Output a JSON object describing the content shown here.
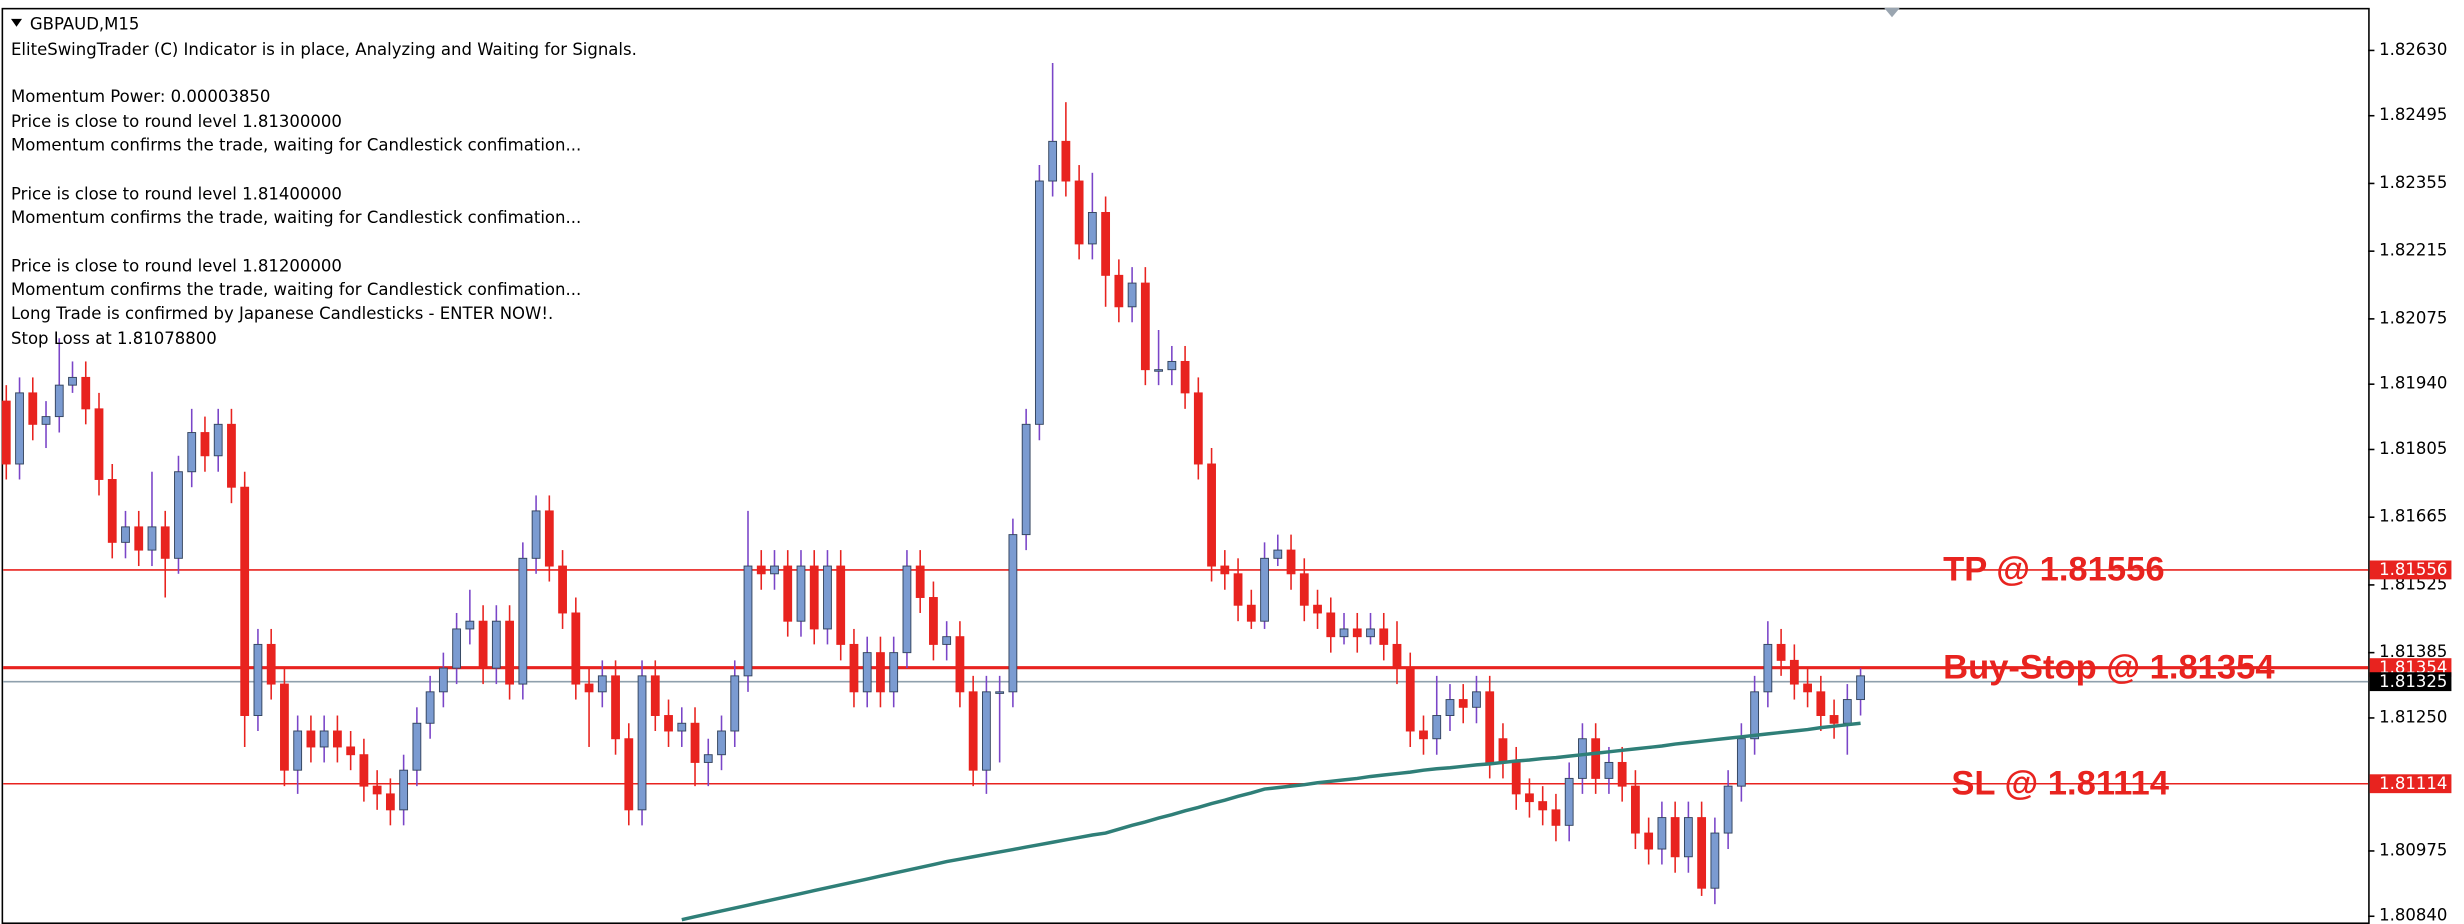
{
  "chart_data": {
    "type": "candlestick",
    "title": "GBPAUD,M15",
    "info_lines": [
      "EliteSwingTrader (C) Indicator is in place, Analyzing and Waiting for Signals.",
      "Momentum Power: 0.00003850",
      "Price is close to round level 1.81300000",
      "Momentum confirms the trade, waiting for Candlestick confimation...",
      "Price is close to round level 1.81400000",
      "Momentum confirms the trade, waiting for Candlestick confimation...",
      "Price is close to round level 1.81200000",
      "Momentum confirms the trade, waiting for Candlestick confimation...",
      "Long Trade is confirmed by Japanese Candlesticks - ENTER NOW!.",
      "Stop Loss at 1.81078800"
    ],
    "open": [
      1.81905,
      1.81775,
      1.81922,
      1.81857,
      1.81873,
      1.81938,
      1.81954,
      1.81889,
      1.81743,
      1.81613,
      1.81645,
      1.81597,
      1.81645,
      1.8158,
      1.81759,
      1.8184,
      1.81792,
      1.81857,
      1.81727,
      1.81255,
      1.81402,
      1.8132,
      1.81142,
      1.81223,
      1.8119,
      1.81223,
      1.8119,
      1.81174,
      1.81109,
      1.81093,
      1.8106,
      1.81142,
      1.81239,
      1.81304,
      1.81353,
      1.81434,
      1.8145,
      1.81353,
      1.8145,
      1.8132,
      1.8158,
      1.81678,
      1.81564,
      1.81467,
      1.8132,
      1.81304,
      1.81337,
      1.81207,
      1.8106,
      1.81337,
      1.81255,
      1.81223,
      1.81239,
      1.81158,
      1.81174,
      1.81223,
      1.81337,
      1.81564,
      1.81548,
      1.81564,
      1.8145,
      1.81564,
      1.81434,
      1.81564,
      1.81402,
      1.81304,
      1.81385,
      1.81304,
      1.81385,
      1.81564,
      1.81499,
      1.81402,
      1.81418,
      1.81304,
      1.81142,
      1.81304,
      1.81304,
      1.81629,
      1.81857,
      1.8236,
      1.82442,
      1.8236,
      1.8223,
      1.82295,
      1.82165,
      1.821,
      1.82149,
      1.8197,
      1.8197,
      1.81987,
      1.81922,
      1.81775,
      1.81564,
      1.81548,
      1.81483,
      1.8145,
      1.8158,
      1.81597,
      1.81548,
      1.81483,
      1.81467,
      1.81418,
      1.81434,
      1.81418,
      1.81434,
      1.81402,
      1.81353,
      1.81223,
      1.81207,
      1.81255,
      1.81288,
      1.81272,
      1.81304,
      1.81207,
      1.81158,
      1.81093,
      1.81077,
      1.8106,
      1.81028,
      1.81125,
      1.81207,
      1.81125,
      1.81158,
      1.81109,
      1.81012,
      1.80979,
      1.81044,
      1.80963,
      1.81044,
      1.80898,
      1.81012,
      1.81109,
      1.81207,
      1.81304,
      1.81402,
      1.81369,
      1.8132,
      1.81304,
      1.81255,
      1.81239,
      1.81288
    ],
    "high": [
      1.81938,
      1.81954,
      1.81954,
      1.81905,
      1.82035,
      1.81987,
      1.81987,
      1.81922,
      1.81775,
      1.81678,
      1.81678,
      1.81759,
      1.81678,
      1.81792,
      1.81889,
      1.81873,
      1.81889,
      1.81889,
      1.81759,
      1.81434,
      1.81434,
      1.81353,
      1.81255,
      1.81255,
      1.81255,
      1.81255,
      1.81223,
      1.81207,
      1.81142,
      1.81125,
      1.81174,
      1.81272,
      1.81337,
      1.81385,
      1.81467,
      1.81515,
      1.81483,
      1.81483,
      1.81483,
      1.81613,
      1.8171,
      1.8171,
      1.81597,
      1.81499,
      1.81353,
      1.81369,
      1.81369,
      1.81239,
      1.81369,
      1.81369,
      1.81288,
      1.81272,
      1.81272,
      1.81207,
      1.81255,
      1.81369,
      1.81678,
      1.81597,
      1.81597,
      1.81597,
      1.81597,
      1.81597,
      1.81597,
      1.81597,
      1.81434,
      1.81418,
      1.81418,
      1.81418,
      1.81597,
      1.81597,
      1.81532,
      1.8145,
      1.8145,
      1.81337,
      1.81337,
      1.81337,
      1.81662,
      1.81889,
      1.82393,
      1.82604,
      1.82523,
      1.82393,
      1.82377,
      1.82328,
      1.82198,
      1.82182,
      1.82182,
      1.82052,
      1.82019,
      1.82019,
      1.81954,
      1.81808,
      1.81597,
      1.8158,
      1.81515,
      1.81613,
      1.81629,
      1.81629,
      1.8158,
      1.81515,
      1.81499,
      1.81467,
      1.81467,
      1.81467,
      1.81467,
      1.8145,
      1.81385,
      1.81255,
      1.81337,
      1.8132,
      1.8132,
      1.81337,
      1.81337,
      1.81239,
      1.8119,
      1.81125,
      1.81109,
      1.81093,
      1.81158,
      1.81239,
      1.81239,
      1.8119,
      1.8119,
      1.81142,
      1.81044,
      1.81077,
      1.81077,
      1.81077,
      1.81077,
      1.81044,
      1.81142,
      1.81239,
      1.81337,
      1.8145,
      1.81434,
      1.81402,
      1.81353,
      1.81337,
      1.81288,
      1.8132,
      1.81353
    ],
    "low": [
      1.81743,
      1.81743,
      1.81824,
      1.81808,
      1.8184,
      1.81922,
      1.81857,
      1.8171,
      1.8158,
      1.8158,
      1.81564,
      1.81564,
      1.81499,
      1.81548,
      1.81727,
      1.81759,
      1.81759,
      1.81694,
      1.8119,
      1.81223,
      1.81288,
      1.81109,
      1.81093,
      1.81158,
      1.81158,
      1.81158,
      1.81142,
      1.81077,
      1.8106,
      1.81028,
      1.81028,
      1.81109,
      1.81207,
      1.81272,
      1.8132,
      1.81402,
      1.8132,
      1.8132,
      1.81288,
      1.81288,
      1.81548,
      1.81532,
      1.81434,
      1.81288,
      1.8119,
      1.81272,
      1.81174,
      1.81028,
      1.81028,
      1.81223,
      1.8119,
      1.8119,
      1.81109,
      1.81109,
      1.81142,
      1.8119,
      1.81304,
      1.81515,
      1.81515,
      1.81418,
      1.81418,
      1.81402,
      1.81402,
      1.81369,
      1.81272,
      1.81272,
      1.81272,
      1.81272,
      1.81353,
      1.81467,
      1.81369,
      1.81369,
      1.81272,
      1.81109,
      1.81093,
      1.81158,
      1.81272,
      1.81597,
      1.81824,
      1.82328,
      1.82328,
      1.82198,
      1.82198,
      1.821,
      1.82068,
      1.82068,
      1.81938,
      1.81938,
      1.81938,
      1.81889,
      1.81743,
      1.81532,
      1.81515,
      1.8145,
      1.81434,
      1.81434,
      1.81564,
      1.81515,
      1.8145,
      1.81434,
      1.81385,
      1.81402,
      1.81385,
      1.81402,
      1.81369,
      1.8132,
      1.8119,
      1.81174,
      1.81174,
      1.81223,
      1.81239,
      1.81239,
      1.81125,
      1.81125,
      1.8106,
      1.81044,
      1.81028,
      1.80995,
      1.80995,
      1.81093,
      1.81093,
      1.81093,
      1.81077,
      1.80979,
      1.80947,
      1.80947,
      1.8093,
      1.8093,
      1.80882,
      1.80865,
      1.80979,
      1.81077,
      1.81174,
      1.81272,
      1.81337,
      1.81288,
      1.81272,
      1.81223,
      1.81207,
      1.81174,
      1.81255
    ],
    "close": [
      1.81775,
      1.81922,
      1.81857,
      1.81873,
      1.81938,
      1.81954,
      1.81889,
      1.81743,
      1.81613,
      1.81645,
      1.81597,
      1.81645,
      1.8158,
      1.81759,
      1.8184,
      1.81792,
      1.81857,
      1.81727,
      1.81255,
      1.81402,
      1.8132,
      1.81142,
      1.81223,
      1.8119,
      1.81223,
      1.8119,
      1.81174,
      1.81109,
      1.81093,
      1.8106,
      1.81142,
      1.81239,
      1.81304,
      1.81353,
      1.81434,
      1.8145,
      1.81353,
      1.8145,
      1.8132,
      1.8158,
      1.81678,
      1.81564,
      1.81467,
      1.8132,
      1.81304,
      1.81337,
      1.81207,
      1.8106,
      1.81337,
      1.81255,
      1.81223,
      1.81239,
      1.81158,
      1.81174,
      1.81223,
      1.81337,
      1.81564,
      1.81548,
      1.81564,
      1.8145,
      1.81564,
      1.81434,
      1.81564,
      1.81402,
      1.81304,
      1.81385,
      1.81304,
      1.81385,
      1.81564,
      1.81499,
      1.81402,
      1.81418,
      1.81304,
      1.81142,
      1.81304,
      1.81304,
      1.81629,
      1.81857,
      1.8236,
      1.82442,
      1.8236,
      1.8223,
      1.82295,
      1.82165,
      1.821,
      1.82149,
      1.8197,
      1.8197,
      1.81987,
      1.81922,
      1.81775,
      1.81564,
      1.81548,
      1.81483,
      1.8145,
      1.8158,
      1.81597,
      1.81548,
      1.81483,
      1.81467,
      1.81418,
      1.81434,
      1.81418,
      1.81434,
      1.81402,
      1.81353,
      1.81223,
      1.81207,
      1.81255,
      1.81288,
      1.81272,
      1.81304,
      1.81158,
      1.81158,
      1.81093,
      1.81077,
      1.8106,
      1.81028,
      1.81125,
      1.81207,
      1.81125,
      1.81158,
      1.81109,
      1.81012,
      1.80979,
      1.81044,
      1.80963,
      1.81044,
      1.80898,
      1.81012,
      1.81109,
      1.81207,
      1.81304,
      1.81402,
      1.81369,
      1.8132,
      1.81304,
      1.81255,
      1.81239,
      1.81288,
      1.81337
    ],
    "up_color": "#7b9bd1",
    "up_wick_color": "#7a45c8",
    "down_color": "#e8231f",
    "overlay": {
      "color": "#2f7f78",
      "values": [
        null,
        null,
        null,
        null,
        null,
        null,
        null,
        null,
        null,
        null,
        null,
        null,
        null,
        null,
        null,
        null,
        null,
        null,
        null,
        null,
        null,
        null,
        null,
        null,
        null,
        null,
        null,
        null,
        null,
        null,
        null,
        null,
        null,
        null,
        null,
        null,
        null,
        null,
        null,
        null,
        null,
        null,
        null,
        null,
        null,
        null,
        null,
        null,
        null,
        null,
        null,
        1.80833,
        1.80839,
        1.80845,
        1.80851,
        1.80857,
        1.80863,
        1.80869,
        1.80875,
        1.80881,
        1.80887,
        1.80893,
        1.80899,
        1.80905,
        1.80911,
        1.80917,
        1.80923,
        1.80929,
        1.80935,
        1.80941,
        1.80947,
        1.80953,
        1.80958,
        1.80963,
        1.80968,
        1.80973,
        1.80978,
        1.80983,
        1.80988,
        1.80993,
        1.80998,
        1.81003,
        1.81008,
        1.81012,
        1.8102,
        1.81028,
        1.81035,
        1.81043,
        1.8105,
        1.81058,
        1.81065,
        1.81073,
        1.8108,
        1.81088,
        1.81095,
        1.81103,
        1.81106,
        1.81109,
        1.81112,
        1.81116,
        1.81119,
        1.81122,
        1.81125,
        1.81129,
        1.81132,
        1.81135,
        1.81138,
        1.81142,
        1.81145,
        1.81147,
        1.8115,
        1.81153,
        1.81155,
        1.81158,
        1.81161,
        1.81163,
        1.81166,
        1.81168,
        1.81171,
        1.81174,
        1.81177,
        1.8118,
        1.81183,
        1.81186,
        1.81189,
        1.81192,
        1.81196,
        1.81199,
        1.81202,
        1.81205,
        1.81208,
        1.81211,
        1.81214,
        1.81217,
        1.8122,
        1.81223,
        1.81226,
        1.8123,
        1.81233,
        1.81236,
        1.81239
      ]
    },
    "levels": [
      {
        "label": "TP @ 1.81556",
        "value": 1.81556,
        "color": "#e8231f"
      },
      {
        "label": "Buy-Stop @ 1.81354",
        "value": 1.81354,
        "color": "#e8231f"
      },
      {
        "label": "SL @ 1.81114",
        "value": 1.81114,
        "color": "#e8231f"
      },
      {
        "value": 1.81325,
        "color": "#000000"
      }
    ],
    "ylim": [
      1.80824,
      1.82718
    ],
    "yticks": [
      {
        "value": 1.8263,
        "label": "1.82630"
      },
      1.82495,
      1.82355,
      1.82215,
      1.82075,
      {
        "value": 1.8194,
        "label": "1.81940"
      },
      1.81805,
      1.81665,
      1.81525,
      1.81385,
      {
        "value": 1.8125,
        "label": "1.81250"
      },
      1.80975,
      {
        "value": 1.8084,
        "label": "1.80840"
      }
    ]
  }
}
